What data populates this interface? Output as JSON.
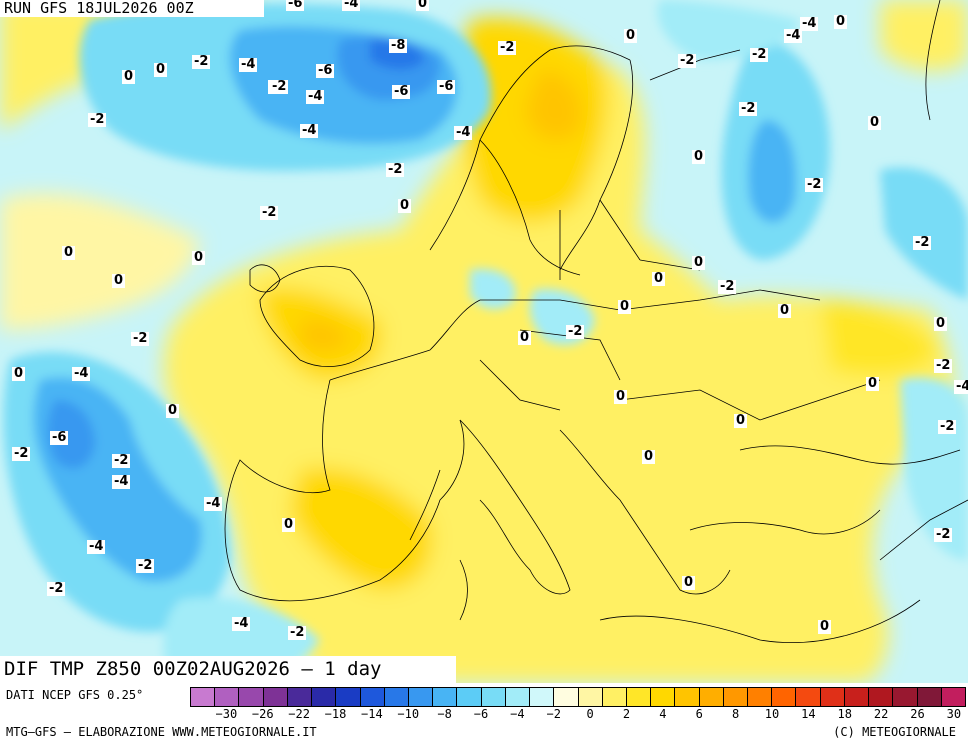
{
  "header": {
    "run_title": "RUN GFS 18JUL2026 00Z"
  },
  "map": {
    "title": "DIF TMP Z850 00Z02AUG2026 — 1 day",
    "isoline_labels": [
      "-6",
      "-4",
      "0",
      "-4",
      "0",
      "-2",
      "-2",
      "-4",
      "-8",
      "-2",
      "-4",
      "0",
      "-2",
      "-4",
      "-6",
      "-2",
      "0",
      "0",
      "-2",
      "-6",
      "-6",
      "-2",
      "-4",
      "-4",
      "-2",
      "0",
      "-2",
      "0",
      "-2",
      "0",
      "0",
      "0",
      "0",
      "-2",
      "-2",
      "0",
      "0",
      "0",
      "-2",
      "0",
      "-2",
      "-4",
      "0",
      "-2",
      "0",
      "-6",
      "-2",
      "0",
      "-4",
      "0",
      "-2",
      "-4",
      "0",
      "0",
      "-4",
      "0",
      "-2",
      "0",
      "-2",
      "-2",
      "0",
      "-4",
      "-2",
      "-2",
      "0",
      "0",
      "-2",
      "-4"
    ]
  },
  "legend": {
    "colors": [
      "#c87ad0",
      "#b060c0",
      "#9848ac",
      "#7e3296",
      "#4a2a9a",
      "#2a2aa8",
      "#1a3cc4",
      "#1e58dc",
      "#2878e8",
      "#3898f0",
      "#48b4f4",
      "#5cccf6",
      "#78dcf6",
      "#a2ecf8",
      "#d0f8fa",
      "#fffde0",
      "#fff6a4",
      "#fff064",
      "#ffe628",
      "#ffd800",
      "#ffc400",
      "#ffae00",
      "#ff9800",
      "#ff8000",
      "#ff6400",
      "#f44a10",
      "#e03018",
      "#c8201c",
      "#b01820",
      "#981830",
      "#801838",
      "#c21e5e"
    ],
    "tick_labels": [
      "−30",
      "−26",
      "−22",
      "−18",
      "−14",
      "−10",
      "−8",
      "−6",
      "−4",
      "−2",
      "0",
      "2",
      "4",
      "6",
      "8",
      "10",
      "14",
      "18",
      "22",
      "26",
      "30"
    ]
  },
  "footer": {
    "data_source": "DATI NCEP GFS 0.25°",
    "elaboration": "MTG–GFS — ELABORAZIONE WWW.METEOGIORNALE.IT",
    "copyright": "(C) METEOGIORNALE"
  }
}
